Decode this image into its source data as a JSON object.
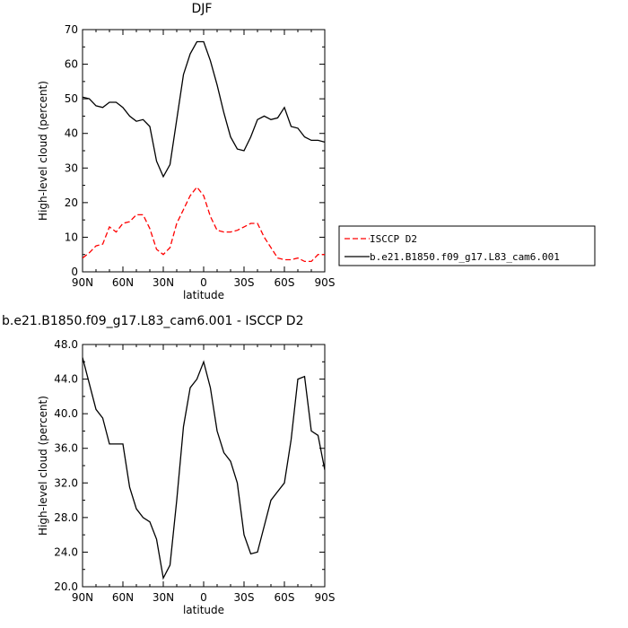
{
  "chart_data": [
    {
      "type": "line",
      "title": "DJF",
      "xlabel": "latitude",
      "ylabel": "High-level cloud (percent)",
      "xlim": [
        90,
        -90
      ],
      "ylim": [
        0,
        70
      ],
      "x_ticks": [
        90,
        60,
        30,
        0,
        -30,
        -60,
        -90
      ],
      "x_tick_labels": [
        "90N",
        "60N",
        "30N",
        "0",
        "30S",
        "60S",
        "90S"
      ],
      "y_ticks": [
        0,
        10,
        20,
        30,
        40,
        50,
        60,
        70
      ],
      "y_tick_labels": [
        "0",
        "10",
        "20",
        "30",
        "40",
        "50",
        "60",
        "70"
      ],
      "legend_position": "right",
      "series": [
        {
          "name": "ISCCP D2",
          "color": "#ff0000",
          "dash": "dashed",
          "x": [
            90,
            85,
            80,
            75,
            70,
            65,
            60,
            55,
            50,
            45,
            40,
            35,
            30,
            25,
            20,
            15,
            10,
            5,
            0,
            -5,
            -10,
            -15,
            -20,
            -25,
            -30,
            -35,
            -40,
            -45,
            -50,
            -55,
            -60,
            -65,
            -70,
            -75,
            -80,
            -85,
            -90
          ],
          "y": [
            4,
            5.5,
            7.5,
            8,
            13,
            11.5,
            14,
            14.5,
            16.5,
            16.5,
            12.5,
            6.5,
            5,
            7,
            14,
            18,
            22,
            24.5,
            22,
            16,
            12,
            11.5,
            11.5,
            12,
            13,
            14,
            14,
            10,
            7,
            4,
            3.5,
            3.5,
            4,
            3,
            3,
            5,
            5
          ]
        },
        {
          "name": "b.e21.B1850.f09_g17.L83_cam6.001",
          "color": "#000000",
          "dash": "solid",
          "x": [
            90,
            85,
            80,
            75,
            70,
            65,
            60,
            55,
            50,
            45,
            40,
            35,
            30,
            25,
            20,
            15,
            10,
            5,
            0,
            -5,
            -10,
            -15,
            -20,
            -25,
            -30,
            -35,
            -40,
            -45,
            -50,
            -55,
            -60,
            -65,
            -70,
            -75,
            -80,
            -85,
            -90
          ],
          "y": [
            50.5,
            50,
            48,
            47.5,
            49,
            49,
            47.5,
            45,
            43.5,
            44,
            42,
            32,
            27.5,
            31,
            44,
            57,
            63,
            66.5,
            66.5,
            61,
            54,
            46,
            39,
            35.5,
            35,
            39,
            44,
            45,
            44,
            44.5,
            47.5,
            42,
            41.5,
            39,
            38,
            38,
            37.5
          ]
        }
      ]
    },
    {
      "type": "line",
      "title": "b.e21.B1850.f09_g17.L83_cam6.001 - ISCCP D2",
      "xlabel": "latitude",
      "ylabel": "High-level cloud (percent)",
      "xlim": [
        90,
        -90
      ],
      "ylim": [
        20,
        48
      ],
      "x_ticks": [
        90,
        60,
        30,
        0,
        -30,
        -60,
        -90
      ],
      "x_tick_labels": [
        "90N",
        "60N",
        "30N",
        "0",
        "30S",
        "60S",
        "90S"
      ],
      "y_ticks": [
        20,
        24,
        28,
        32,
        36,
        40,
        44,
        48
      ],
      "y_tick_labels": [
        "20.0",
        "24.0",
        "28.0",
        "32.0",
        "36.0",
        "40.0",
        "44.0",
        "48.0"
      ],
      "series": [
        {
          "color": "#000000",
          "dash": "solid",
          "x": [
            90,
            85,
            80,
            75,
            70,
            65,
            60,
            55,
            50,
            45,
            40,
            35,
            30,
            25,
            20,
            15,
            10,
            5,
            0,
            -5,
            -10,
            -15,
            -20,
            -25,
            -30,
            -35,
            -40,
            -45,
            -50,
            -55,
            -60,
            -65,
            -70,
            -75,
            -80,
            -85,
            -90
          ],
          "y": [
            46.5,
            43.5,
            40.5,
            39.5,
            36.5,
            36.5,
            36.5,
            31.5,
            29,
            28,
            27.5,
            25.5,
            21,
            22.5,
            30,
            38.5,
            43,
            44,
            46,
            43,
            38,
            35.5,
            34.5,
            32,
            26,
            23.8,
            24,
            27,
            30,
            31,
            32,
            37,
            44,
            44.3,
            38,
            37.5,
            33.5
          ]
        }
      ]
    }
  ]
}
